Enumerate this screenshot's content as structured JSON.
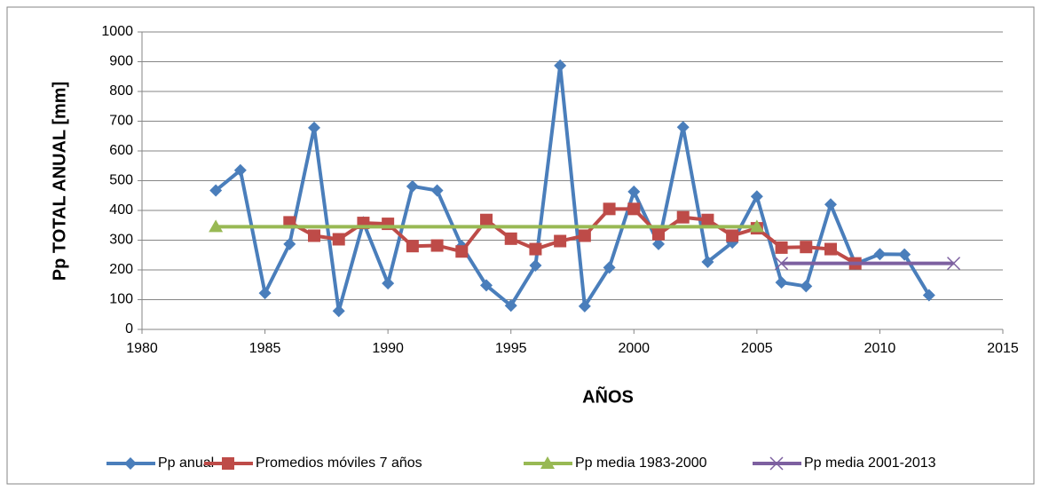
{
  "chart_data": {
    "type": "line",
    "xlabel": "AÑOS",
    "ylabel": "Pp TOTAL ANUAL [mm]",
    "xlim": [
      1980,
      2015
    ],
    "xticks": [
      1980,
      1985,
      1990,
      1995,
      2000,
      2005,
      2010,
      2015
    ],
    "ylim": [
      0,
      1000
    ],
    "yticks": [
      0,
      100,
      200,
      300,
      400,
      500,
      600,
      700,
      800,
      900,
      1000
    ],
    "grid": true,
    "legend": "bottom",
    "series": [
      {
        "name": "Pp anual",
        "color": "#4a7ebb",
        "marker": "diamond",
        "x": [
          1983,
          1984,
          1985,
          1986,
          1987,
          1988,
          1989,
          1990,
          1991,
          1992,
          1993,
          1994,
          1995,
          1996,
          1997,
          1998,
          1999,
          2000,
          2001,
          2002,
          2003,
          2004,
          2005,
          2006,
          2007,
          2008,
          2009,
          2010,
          2011,
          2012
        ],
        "values": [
          467,
          535,
          122,
          287,
          678,
          62,
          360,
          155,
          481,
          467,
          280,
          148,
          80,
          215,
          887,
          78,
          208,
          463,
          287,
          680,
          227,
          292,
          447,
          158,
          145,
          420,
          220,
          253,
          252,
          115
        ]
      },
      {
        "name": "Promedios móviles 7 años",
        "color": "#be4b48",
        "marker": "square",
        "x": [
          1986,
          1987,
          1988,
          1989,
          1990,
          1991,
          1992,
          1993,
          1994,
          1995,
          1996,
          1997,
          1998,
          1999,
          2000,
          2001,
          2002,
          2003,
          2004,
          2005,
          2006,
          2007,
          2008,
          2009
        ],
        "values": [
          360,
          315,
          303,
          358,
          355,
          280,
          282,
          262,
          368,
          305,
          270,
          297,
          315,
          405,
          405,
          320,
          377,
          368,
          315,
          340,
          275,
          277,
          270,
          222
        ]
      },
      {
        "name": "Pp media 1983-2000",
        "color": "#98b954",
        "marker": "triangle",
        "x": [
          1983,
          2005
        ],
        "values": [
          345,
          345
        ]
      },
      {
        "name": "Pp media 2001-2013",
        "color": "#7d60a0",
        "marker": "x",
        "x": [
          2006,
          2013
        ],
        "values": [
          222,
          222
        ]
      }
    ]
  }
}
